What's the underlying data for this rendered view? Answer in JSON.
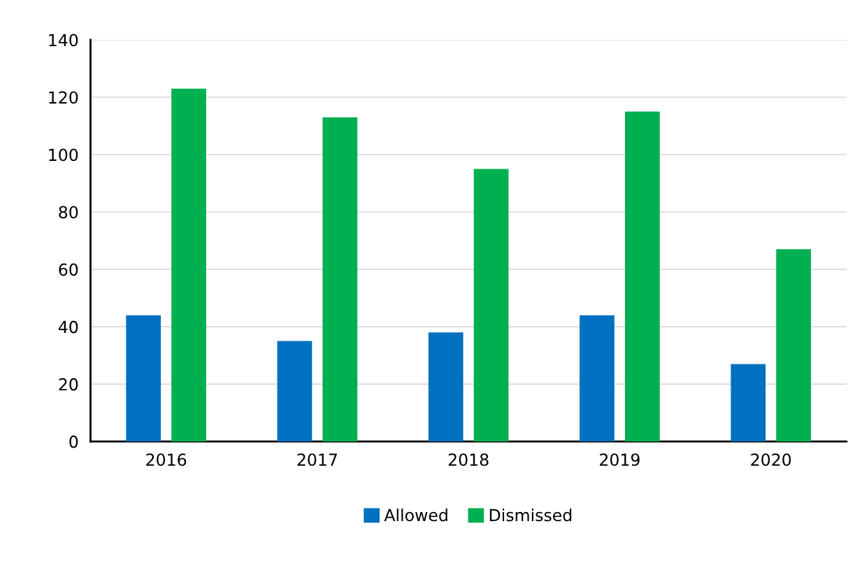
{
  "chart_data": {
    "type": "bar",
    "categories": [
      "2016",
      "2017",
      "2018",
      "2019",
      "2020"
    ],
    "series": [
      {
        "name": "Allowed",
        "color": "#0070c0",
        "values": [
          44,
          35,
          38,
          44,
          27
        ]
      },
      {
        "name": "Dismissed",
        "color": "#00b050",
        "values": [
          123,
          113,
          95,
          115,
          67
        ]
      }
    ],
    "ylim": [
      0,
      140
    ],
    "yticks": [
      0,
      20,
      40,
      60,
      80,
      100,
      120,
      140
    ],
    "grid": "y",
    "legend": "bottom"
  }
}
